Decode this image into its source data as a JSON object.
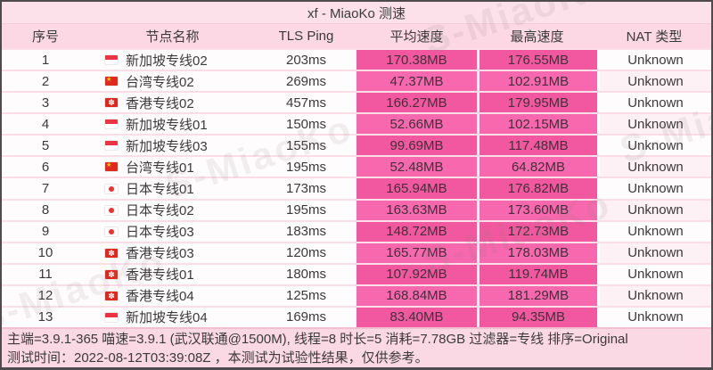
{
  "title": "xf - MiaoKo 测速",
  "watermark_text": "S-MiaoKo",
  "colors": {
    "page_background": "#fcdfe9",
    "header_background": "#fbd8e3",
    "speed_cell_odd": "#f2589f",
    "speed_cell_even": "#f768ae",
    "footer_background": "#fbd9e4"
  },
  "table": {
    "columns": [
      "序号",
      "节点名称",
      "TLS Ping",
      "平均速度",
      "最高速度",
      "NAT 类型"
    ],
    "rows": [
      {
        "index": "1",
        "flag": "sg",
        "flag_name": "singapore-flag",
        "name": "新加坡专线02",
        "tls_ping": "203ms",
        "avg_speed": "170.38MB",
        "max_speed": "176.55MB",
        "nat_type": "Unknown"
      },
      {
        "index": "2",
        "flag": "cn",
        "flag_name": "china-flag",
        "name": "台湾专线02",
        "tls_ping": "269ms",
        "avg_speed": "47.37MB",
        "max_speed": "102.91MB",
        "nat_type": "Unknown"
      },
      {
        "index": "3",
        "flag": "hk",
        "flag_name": "hong-kong-flag",
        "name": "香港专线02",
        "tls_ping": "457ms",
        "avg_speed": "166.27MB",
        "max_speed": "179.95MB",
        "nat_type": "Unknown"
      },
      {
        "index": "4",
        "flag": "sg",
        "flag_name": "singapore-flag",
        "name": "新加坡专线01",
        "tls_ping": "150ms",
        "avg_speed": "52.66MB",
        "max_speed": "102.15MB",
        "nat_type": "Unknown"
      },
      {
        "index": "5",
        "flag": "sg",
        "flag_name": "singapore-flag",
        "name": "新加坡专线03",
        "tls_ping": "155ms",
        "avg_speed": "99.69MB",
        "max_speed": "117.48MB",
        "nat_type": "Unknown"
      },
      {
        "index": "6",
        "flag": "cn",
        "flag_name": "china-flag",
        "name": "台湾专线01",
        "tls_ping": "195ms",
        "avg_speed": "52.48MB",
        "max_speed": "64.82MB",
        "nat_type": "Unknown"
      },
      {
        "index": "7",
        "flag": "jp",
        "flag_name": "japan-flag",
        "name": "日本专线01",
        "tls_ping": "173ms",
        "avg_speed": "165.94MB",
        "max_speed": "176.82MB",
        "nat_type": "Unknown"
      },
      {
        "index": "8",
        "flag": "jp",
        "flag_name": "japan-flag",
        "name": "日本专线02",
        "tls_ping": "195ms",
        "avg_speed": "163.63MB",
        "max_speed": "173.60MB",
        "nat_type": "Unknown"
      },
      {
        "index": "9",
        "flag": "jp",
        "flag_name": "japan-flag",
        "name": "日本专线03",
        "tls_ping": "183ms",
        "avg_speed": "148.72MB",
        "max_speed": "172.73MB",
        "nat_type": "Unknown"
      },
      {
        "index": "10",
        "flag": "hk",
        "flag_name": "hong-kong-flag",
        "name": "香港专线03",
        "tls_ping": "120ms",
        "avg_speed": "165.77MB",
        "max_speed": "178.03MB",
        "nat_type": "Unknown"
      },
      {
        "index": "11",
        "flag": "hk",
        "flag_name": "hong-kong-flag",
        "name": "香港专线01",
        "tls_ping": "180ms",
        "avg_speed": "107.92MB",
        "max_speed": "119.74MB",
        "nat_type": "Unknown"
      },
      {
        "index": "12",
        "flag": "hk",
        "flag_name": "hong-kong-flag",
        "name": "香港专线04",
        "tls_ping": "125ms",
        "avg_speed": "168.84MB",
        "max_speed": "181.29MB",
        "nat_type": "Unknown"
      },
      {
        "index": "13",
        "flag": "sg",
        "flag_name": "singapore-flag",
        "name": "新加坡专线04",
        "tls_ping": "169ms",
        "avg_speed": "83.40MB",
        "max_speed": "94.35MB",
        "nat_type": "Unknown"
      }
    ]
  },
  "footer": {
    "line1": "主端=3.9.1-365 喵速=3.9.1 (武汉联通@1500M), 线程=8 时长=5 消耗=7.78GB 过滤器=专线 排序=Original",
    "line2": "测试时间：2022-08-12T03:39:08Z ，本测试为试验性结果，仅供参考。"
  }
}
